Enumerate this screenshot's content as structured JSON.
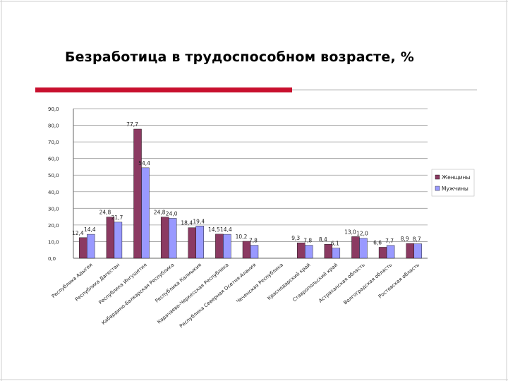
{
  "slide": {
    "title": "Безработица в трудоспособном возрасте, %"
  },
  "colors": {
    "women": "#8b3a62",
    "men": "#9999ff",
    "accent_rule": "#c8102e"
  },
  "chart_data": {
    "type": "bar",
    "title": "",
    "xlabel": "",
    "ylabel": "",
    "ylim": [
      0,
      90
    ],
    "yticks": [
      "0,0",
      "10,0",
      "20,0",
      "30,0",
      "40,0",
      "50,0",
      "60,0",
      "70,0",
      "80,0",
      "90,0"
    ],
    "grid": true,
    "legend_position": "right",
    "categories": [
      "Республика Адыгея",
      "Республика Дагестан",
      "Республика Ингушетия",
      "Кабардино-Балкарская Республика",
      "Республика Калмыкия",
      "Карачаево-Черкесская Республика",
      "Республика Северная Осетия-Алания",
      "Чеченская Республика",
      "Краснодарский край",
      "Ставропольский край",
      "Астраханская область",
      "Волгоградская область",
      "Ростовская область"
    ],
    "series": [
      {
        "name": "Женщины",
        "values": [
          12.4,
          24.8,
          77.7,
          24.8,
          18.4,
          14.5,
          10.2,
          null,
          9.3,
          8.4,
          13.0,
          6.6,
          8.9
        ],
        "labels": [
          "12,4",
          "24,8",
          "77,7",
          "24,8",
          "18,4",
          "14,5",
          "10,2",
          "",
          "9,3",
          "8,4",
          "13,0",
          "6,6",
          "8,9"
        ]
      },
      {
        "name": "Мужчины",
        "values": [
          14.4,
          21.7,
          54.4,
          24.0,
          19.4,
          14.4,
          7.8,
          null,
          7.8,
          6.1,
          12.0,
          7.7,
          8.7
        ],
        "labels": [
          "14,4",
          "21,7",
          "54,4",
          "24,0",
          "19,4",
          "14,4",
          "7,8",
          "",
          "7,8",
          "6,1",
          "12,0",
          "7,7",
          "8,7"
        ]
      }
    ]
  }
}
